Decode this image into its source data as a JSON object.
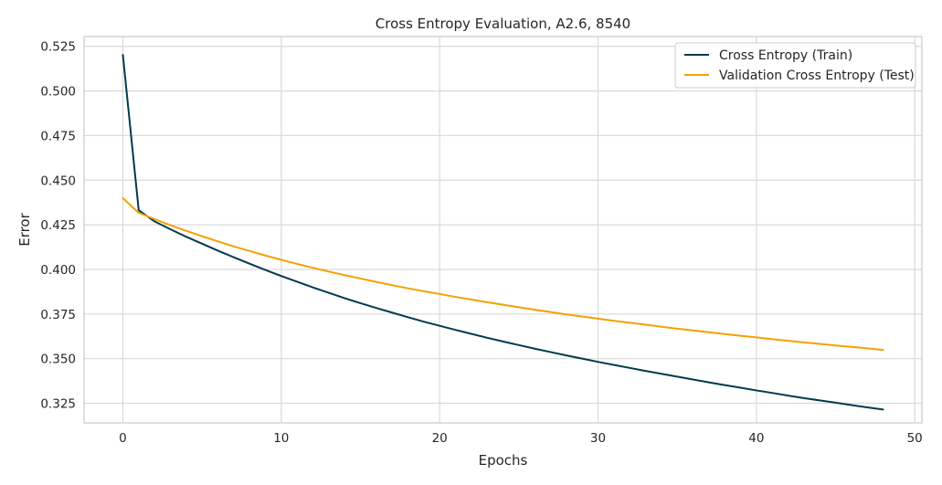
{
  "chart_data": {
    "type": "line",
    "title": "Cross Entropy Evaluation, A2.6, 8540",
    "xlabel": "Epochs",
    "ylabel": "Error",
    "xlim": [
      -2.45,
      50.45
    ],
    "ylim": [
      0.314,
      0.5305
    ],
    "xticks": [
      0,
      10,
      20,
      30,
      40,
      50
    ],
    "yticks": [
      0.325,
      0.35,
      0.375,
      0.4,
      0.425,
      0.45,
      0.475,
      0.5,
      0.525
    ],
    "grid": true,
    "legend_position": "top-right",
    "x": [
      0,
      1,
      2,
      3,
      4,
      5,
      6,
      7,
      8,
      9,
      10,
      11,
      12,
      13,
      14,
      15,
      16,
      17,
      18,
      19,
      20,
      21,
      22,
      23,
      24,
      25,
      26,
      27,
      28,
      29,
      30,
      31,
      32,
      33,
      34,
      35,
      36,
      37,
      38,
      39,
      40,
      41,
      42,
      43,
      44,
      45,
      46,
      47,
      48
    ],
    "series": [
      {
        "name": "Cross Entropy (Train)",
        "color": "#003a4f",
        "values": [
          0.5202,
          0.4332,
          0.4269,
          0.4225,
          0.4183,
          0.4144,
          0.4105,
          0.4068,
          0.4032,
          0.3997,
          0.3963,
          0.3931,
          0.3899,
          0.3869,
          0.3839,
          0.3811,
          0.3784,
          0.3758,
          0.3732,
          0.3707,
          0.3684,
          0.3661,
          0.3639,
          0.3617,
          0.3596,
          0.3576,
          0.3556,
          0.3537,
          0.3518,
          0.35,
          0.3482,
          0.3465,
          0.3448,
          0.3431,
          0.3415,
          0.3399,
          0.3383,
          0.3367,
          0.3352,
          0.3337,
          0.3322,
          0.3308,
          0.3293,
          0.3279,
          0.3266,
          0.3253,
          0.324,
          0.3227,
          0.3215
        ]
      },
      {
        "name": "Validation Cross Entropy (Test)",
        "color": "#f5a000",
        "values": [
          0.4399,
          0.4317,
          0.4282,
          0.4248,
          0.4216,
          0.4186,
          0.4157,
          0.4129,
          0.4103,
          0.4078,
          0.4054,
          0.4031,
          0.4009,
          0.3988,
          0.3968,
          0.3949,
          0.393,
          0.3912,
          0.3894,
          0.3878,
          0.3862,
          0.3846,
          0.3831,
          0.3816,
          0.3802,
          0.3788,
          0.3774,
          0.3761,
          0.3748,
          0.3736,
          0.3724,
          0.3712,
          0.3701,
          0.369,
          0.3679,
          0.3668,
          0.3658,
          0.3648,
          0.3638,
          0.3628,
          0.3619,
          0.3609,
          0.36,
          0.3591,
          0.3583,
          0.3574,
          0.3566,
          0.3558,
          0.3549
        ]
      }
    ]
  }
}
